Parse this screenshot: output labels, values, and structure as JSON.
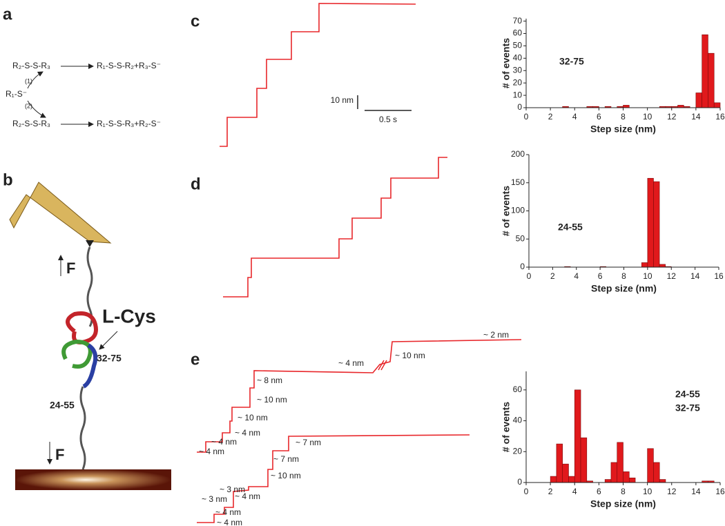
{
  "panels": [
    "a",
    "b",
    "c",
    "d",
    "e"
  ],
  "scheme": {
    "reactant_top": "R₂-S-S-R₃",
    "product_top": "R₁-S-S-R₂+R₃-S⁻",
    "thiolate": "R₁-S⁻",
    "path1": "(1)",
    "path2": "(2)",
    "reactant_bottom": "R₂-S-S-R₃",
    "product_bottom": "R₁-S-S-R₃+R₂-S⁻"
  },
  "protein": {
    "force_top": "F",
    "force_bottom": "F",
    "reagent": "L-Cys",
    "bond1": "32-75",
    "bond2": "24-55"
  },
  "scalebar": {
    "y": "10 nm",
    "x": "0.5 s"
  },
  "trace_labels": [
    "~ 2 nm",
    "~ 4 nm",
    "~ 10 nm",
    "~ 8 nm",
    "~ 10 nm",
    "~ 10 nm",
    "~ 4 nm",
    "~ 4 nm",
    "~ 4 nm",
    "~ 7 nm",
    "~ 7 nm",
    "~ 10 nm",
    "~ 3 nm",
    "~ 4 nm",
    "~ 3 nm",
    "~ 4 nm",
    "~ 4 nm"
  ],
  "chart_data": [
    {
      "type": "histogram",
      "annotation": [
        "32-75"
      ],
      "xlabel": "Step size (nm)",
      "ylabel": "# of events",
      "color": "#e0191c",
      "bins": [
        0,
        0.5,
        1,
        1.5,
        2,
        2.5,
        3,
        3.5,
        4,
        4.5,
        5,
        5.5,
        6,
        6.5,
        7,
        7.5,
        8,
        8.5,
        9,
        9.5,
        10,
        10.5,
        11,
        11.5,
        12,
        12.5,
        13,
        13.5,
        14,
        14.5,
        15,
        15.5,
        16
      ],
      "counts": [
        0,
        0,
        0,
        0,
        0,
        0,
        1,
        0,
        0,
        0,
        1,
        1,
        0,
        1,
        0,
        1,
        2,
        0,
        0,
        0,
        0,
        0,
        1,
        1,
        1,
        2,
        1,
        0,
        12,
        59,
        44,
        4
      ],
      "xlim": [
        0,
        16
      ],
      "xticks": [
        0,
        2,
        4,
        6,
        8,
        10,
        12,
        14,
        16
      ],
      "ylim": [
        0,
        72
      ],
      "yticks": [
        0,
        10,
        20,
        30,
        40,
        50,
        60,
        70
      ]
    },
    {
      "type": "histogram",
      "annotation": [
        "24-55"
      ],
      "xlabel": "Step size (nm)",
      "ylabel": "# of events",
      "color": "#e0191c",
      "bins": [
        0,
        0.5,
        1,
        1.5,
        2,
        2.5,
        3,
        3.5,
        4,
        4.5,
        5,
        5.5,
        6,
        6.5,
        7,
        7.5,
        8,
        8.5,
        9,
        9.5,
        10,
        10.5,
        11,
        11.5,
        12,
        12.5,
        13,
        13.5,
        14,
        14.5,
        15,
        15.5,
        16
      ],
      "counts": [
        0,
        0,
        0,
        0,
        0,
        0,
        1,
        0,
        0,
        0,
        0,
        0,
        1,
        0,
        0,
        0,
        0,
        0,
        0,
        8,
        158,
        152,
        5,
        1,
        0,
        0,
        0,
        0,
        0,
        0,
        0,
        0
      ],
      "xlim": [
        0,
        16
      ],
      "xticks": [
        0,
        2,
        4,
        6,
        8,
        10,
        12,
        14,
        16
      ],
      "ylim": [
        0,
        200
      ],
      "yticks": [
        0,
        50,
        100,
        150,
        200
      ]
    },
    {
      "type": "histogram",
      "annotation": [
        "24-55",
        "32-75"
      ],
      "xlabel": "Step size (nm)",
      "ylabel": "# of events",
      "color": "#e0191c",
      "bins": [
        0,
        0.5,
        1,
        1.5,
        2,
        2.5,
        3,
        3.5,
        4,
        4.5,
        5,
        5.5,
        6,
        6.5,
        7,
        7.5,
        8,
        8.5,
        9,
        9.5,
        10,
        10.5,
        11,
        11.5,
        12,
        12.5,
        13,
        13.5,
        14,
        14.5,
        15,
        15.5,
        16
      ],
      "counts": [
        0,
        0,
        0,
        0,
        4,
        25,
        12,
        4,
        60,
        29,
        1,
        0,
        0,
        2,
        13,
        26,
        7,
        3,
        0,
        0,
        22,
        13,
        2,
        0,
        0,
        0,
        0,
        0,
        0,
        1,
        1,
        0
      ],
      "xlim": [
        0,
        16
      ],
      "xticks": [
        0,
        2,
        4,
        6,
        8,
        10,
        12,
        14,
        16
      ],
      "ylim": [
        0,
        72
      ],
      "yticks": [
        0,
        20,
        40,
        60
      ]
    }
  ]
}
